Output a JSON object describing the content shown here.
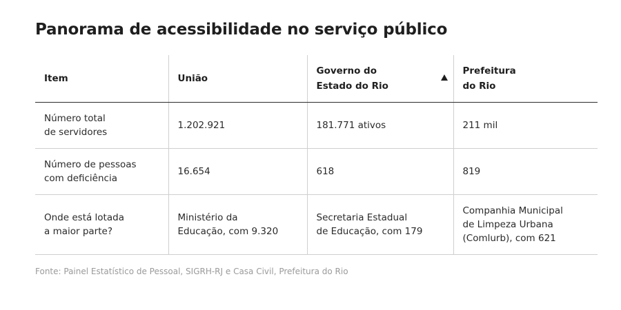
{
  "title": "Panorama de acessibilidade no serviço público",
  "table": {
    "headers": [
      "Item",
      "União",
      "Governo do\nEstado do Rio",
      "Prefeitura\ndo Rio"
    ],
    "rows": [
      [
        "Número total\nde servidores",
        "1.202.921",
        "181.771 ativos",
        "211 mil"
      ],
      [
        "Número de pessoas\ncom deficiência",
        "16.654",
        "618",
        "819"
      ],
      [
        "Onde está lotada\na maior parte?",
        "Ministério da\nEducação, com 9.320",
        "Secretaria Estadual\nde Educação, com 179",
        "Companhia Municipal\nde Limpeza Urbana\n(Comlurb), com 621"
      ]
    ]
  },
  "source": "Fonte: Painel Estatístico de Pessoal, SIGRH-RJ e Casa Civil, Prefeitura do Rio"
}
